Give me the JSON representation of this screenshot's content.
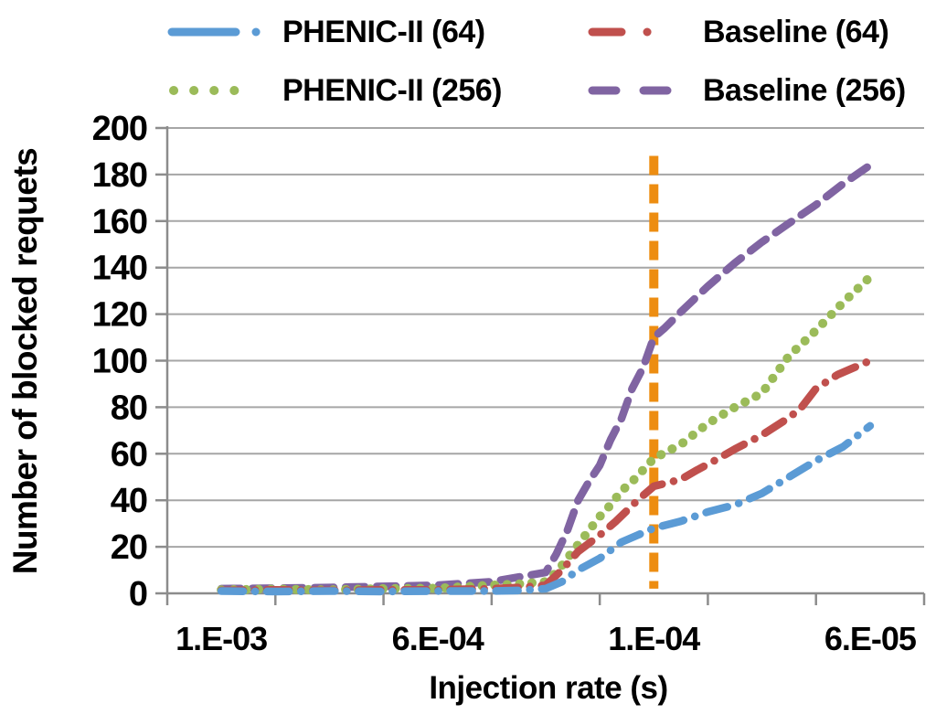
{
  "legend": {
    "items": [
      {
        "label": "PHENIC-II (64)",
        "color": "#5b9bd5",
        "style": "dashdot"
      },
      {
        "label": "Baseline (64)",
        "color": "#c0504d",
        "style": "dashdot"
      },
      {
        "label": "PHENIC-II (256)",
        "color": "#9bbb59",
        "style": "dot"
      },
      {
        "label": "Baseline (256)",
        "color": "#8064a2",
        "style": "dash"
      }
    ]
  },
  "chart_data": {
    "type": "line",
    "title": "",
    "xlabel": "Injection rate (s)",
    "ylabel": "Number of blocked requets",
    "ylim": [
      0,
      200
    ],
    "y_tick_step": 20,
    "y_tick_labels": [
      "0",
      "20",
      "40",
      "60",
      "80",
      "100",
      "120",
      "140",
      "160",
      "180",
      "200"
    ],
    "x_slot_count": 7,
    "x_labeled_slots": [
      1,
      3,
      5,
      7
    ],
    "x_tick_labels": [
      "1.E-03",
      "6.E-04",
      "1.E-04",
      "6.E-05"
    ],
    "grid": true,
    "legend_position": "top",
    "grid_color": "#a6a6a6",
    "axis_color": "#8c8c8c",
    "threshold_line": {
      "at_label": "1.E-04",
      "x_slot": 5,
      "y_from": 2,
      "y_to": 188,
      "color": "#ed8d11",
      "style": "dashed"
    },
    "series": [
      {
        "name": "Baseline (256)",
        "color": "#8064a2",
        "style": "dash",
        "points": [
          [
            1,
            2
          ],
          [
            1.5,
            2.2
          ],
          [
            2,
            2.5
          ],
          [
            2.5,
            3
          ],
          [
            3,
            3.5
          ],
          [
            3.5,
            5
          ],
          [
            3.75,
            7
          ],
          [
            4,
            9
          ],
          [
            4.1,
            17
          ],
          [
            4.2,
            27
          ],
          [
            4.3,
            40
          ],
          [
            4.4,
            48
          ],
          [
            4.5,
            55
          ],
          [
            4.6,
            66
          ],
          [
            4.7,
            75
          ],
          [
            4.8,
            88
          ],
          [
            4.9,
            97
          ],
          [
            5,
            110
          ],
          [
            5.1,
            114
          ],
          [
            5.25,
            121
          ],
          [
            5.5,
            132
          ],
          [
            5.75,
            142
          ],
          [
            6,
            151
          ],
          [
            6.25,
            159
          ],
          [
            6.5,
            167
          ],
          [
            6.75,
            176
          ],
          [
            7,
            184
          ]
        ]
      },
      {
        "name": "PHENIC-II (256)",
        "color": "#9bbb59",
        "style": "dot",
        "points": [
          [
            1,
            1.5
          ],
          [
            1.5,
            1.8
          ],
          [
            2,
            1.5
          ],
          [
            2.5,
            2
          ],
          [
            3,
            2.2
          ],
          [
            3.5,
            3.5
          ],
          [
            3.75,
            4
          ],
          [
            4,
            5
          ],
          [
            4.1,
            9
          ],
          [
            4.2,
            15
          ],
          [
            4.3,
            21
          ],
          [
            4.4,
            27
          ],
          [
            4.5,
            33
          ],
          [
            4.6,
            38
          ],
          [
            4.7,
            44
          ],
          [
            4.8,
            48
          ],
          [
            4.9,
            53
          ],
          [
            5,
            58
          ],
          [
            5.25,
            64
          ],
          [
            5.5,
            73
          ],
          [
            5.75,
            80
          ],
          [
            6,
            86
          ],
          [
            6.25,
            102
          ],
          [
            6.5,
            113
          ],
          [
            6.75,
            125
          ],
          [
            7,
            136
          ]
        ]
      },
      {
        "name": "Baseline (64)",
        "color": "#c0504d",
        "style": "dashdot",
        "points": [
          [
            1,
            1.2
          ],
          [
            1.5,
            1.5
          ],
          [
            2,
            1.2
          ],
          [
            2.5,
            1.5
          ],
          [
            3,
            1.5
          ],
          [
            3.5,
            2
          ],
          [
            3.75,
            2.5
          ],
          [
            4,
            3.5
          ],
          [
            4.15,
            10
          ],
          [
            4.3,
            18
          ],
          [
            4.5,
            25
          ],
          [
            4.65,
            31
          ],
          [
            4.85,
            40
          ],
          [
            5,
            46
          ],
          [
            5.25,
            49
          ],
          [
            5.4,
            53
          ],
          [
            5.6,
            58
          ],
          [
            5.75,
            62
          ],
          [
            6,
            68
          ],
          [
            6.2,
            74
          ],
          [
            6.35,
            79
          ],
          [
            6.5,
            88
          ],
          [
            6.7,
            94
          ],
          [
            7,
            100
          ]
        ]
      },
      {
        "name": "PHENIC-II (64)",
        "color": "#5b9bd5",
        "style": "dashdot",
        "points": [
          [
            1,
            1
          ],
          [
            1.5,
            0.8
          ],
          [
            2,
            1
          ],
          [
            2.5,
            0.8
          ],
          [
            3,
            1
          ],
          [
            3.5,
            1
          ],
          [
            3.75,
            1.2
          ],
          [
            4,
            2
          ],
          [
            4.15,
            5
          ],
          [
            4.3,
            10
          ],
          [
            4.5,
            15
          ],
          [
            4.7,
            22
          ],
          [
            4.85,
            25
          ],
          [
            5,
            28
          ],
          [
            5.25,
            31
          ],
          [
            5.5,
            35
          ],
          [
            5.75,
            38
          ],
          [
            6,
            43
          ],
          [
            6.25,
            50
          ],
          [
            6.5,
            57
          ],
          [
            6.75,
            63
          ],
          [
            7,
            72
          ]
        ]
      }
    ]
  }
}
